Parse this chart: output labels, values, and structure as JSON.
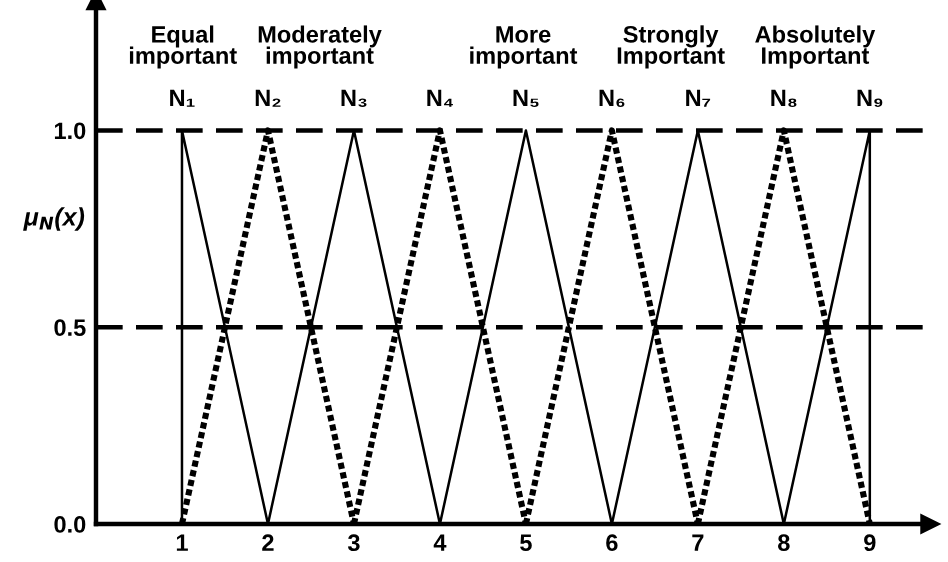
{
  "chart_data": {
    "type": "line",
    "ylabel": "μ$_{N}$(x)",
    "xlim": [
      0,
      9.7
    ],
    "ylim": [
      0,
      1.33
    ],
    "xticks": [
      1,
      2,
      3,
      4,
      5,
      6,
      7,
      8,
      9
    ],
    "yticks": [
      {
        "value": 0,
        "label": "0.0"
      },
      0.5,
      {
        "value": 1,
        "label": "1.0"
      }
    ],
    "grid": false,
    "legend": false,
    "marker": "none",
    "series": [
      {
        "name": "N₁",
        "color": "#000000",
        "line_style": "solid",
        "x": [
          1,
          1,
          2
        ],
        "values": [
          0,
          1,
          0
        ]
      },
      {
        "name": "N₂",
        "color": "#000000",
        "line_style": "dotted",
        "x": [
          1,
          2,
          3
        ],
        "values": [
          0,
          1,
          0
        ]
      },
      {
        "name": "N₃",
        "color": "#000000",
        "line_style": "solid",
        "x": [
          2,
          3,
          4
        ],
        "values": [
          0,
          1,
          0
        ]
      },
      {
        "name": "N₄",
        "color": "#000000",
        "line_style": "dotted",
        "x": [
          3,
          4,
          5
        ],
        "values": [
          0,
          1,
          0
        ]
      },
      {
        "name": "N₅",
        "color": "#000000",
        "line_style": "solid",
        "x": [
          4,
          5,
          6
        ],
        "values": [
          0,
          1,
          0
        ]
      },
      {
        "name": "N₆",
        "color": "#000000",
        "line_style": "dotted",
        "x": [
          5,
          6,
          7
        ],
        "values": [
          0,
          1,
          0
        ]
      },
      {
        "name": "N₇",
        "color": "#000000",
        "line_style": "solid",
        "x": [
          6,
          7,
          8
        ],
        "values": [
          0,
          1,
          0
        ]
      },
      {
        "name": "N₈",
        "color": "#000000",
        "line_style": "dotted",
        "x": [
          7,
          8,
          9
        ],
        "values": [
          0,
          1,
          0
        ]
      },
      {
        "name": "N₉",
        "color": "#000000",
        "line_style": "solid",
        "x": [
          8,
          9,
          9
        ],
        "values": [
          0,
          1,
          0
        ]
      }
    ],
    "ref_lines": [
      {
        "axis": "y",
        "value": 1,
        "color": "#000000",
        "line_style": "dashed"
      },
      {
        "axis": "y",
        "value": 0.5,
        "color": "#000000",
        "line_style": "dashed"
      }
    ],
    "annotations": [
      "Equal\nimportant",
      "Moderately\nimportant",
      "More\nimportant",
      "Strongly\nImportant",
      "Absolutely\nImportant"
    ]
  }
}
